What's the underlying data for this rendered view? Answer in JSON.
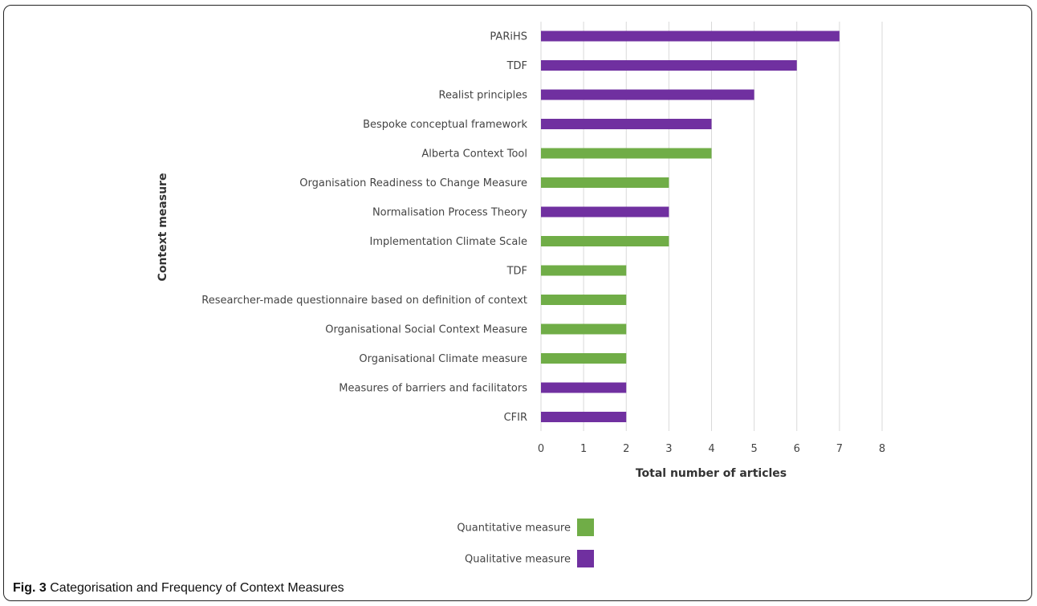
{
  "caption": {
    "fig_label": "Fig. 3",
    "text": "Categorisation and Frequency of Context Measures"
  },
  "colors": {
    "quantitative": "#70ad47",
    "qualitative": "#7030a0",
    "grid": "#d9d9d9"
  },
  "chart_data": {
    "type": "bar",
    "orientation": "horizontal",
    "title": "",
    "xlabel": "Total number of articles",
    "ylabel": "Context measure",
    "xlim": [
      0,
      8
    ],
    "xticks": [
      0,
      1,
      2,
      3,
      4,
      5,
      6,
      7,
      8
    ],
    "grid": true,
    "legend_position": "bottom",
    "categories": [
      "PARiHS",
      "TDF",
      "Realist principles",
      "Bespoke conceptual framework",
      "Alberta Context Tool",
      "Organisation Readiness to Change Measure",
      "Normalisation Process Theory",
      "Implementation Climate Scale",
      "TDF",
      "Researcher-made questionnaire based on definition of context",
      "Organisational Social Context Measure",
      "Organisational Climate measure",
      "Measures of barriers and facilitators",
      "CFIR"
    ],
    "values": [
      7,
      6,
      5,
      4,
      4,
      3,
      3,
      3,
      2,
      2,
      2,
      2,
      2,
      2
    ],
    "types": [
      "qualitative",
      "qualitative",
      "qualitative",
      "qualitative",
      "quantitative",
      "quantitative",
      "qualitative",
      "quantitative",
      "quantitative",
      "quantitative",
      "quantitative",
      "quantitative",
      "qualitative",
      "qualitative"
    ],
    "legend": [
      {
        "key": "quantitative",
        "label": "Quantitative measure"
      },
      {
        "key": "qualitative",
        "label": "Qualitative measure"
      }
    ]
  }
}
